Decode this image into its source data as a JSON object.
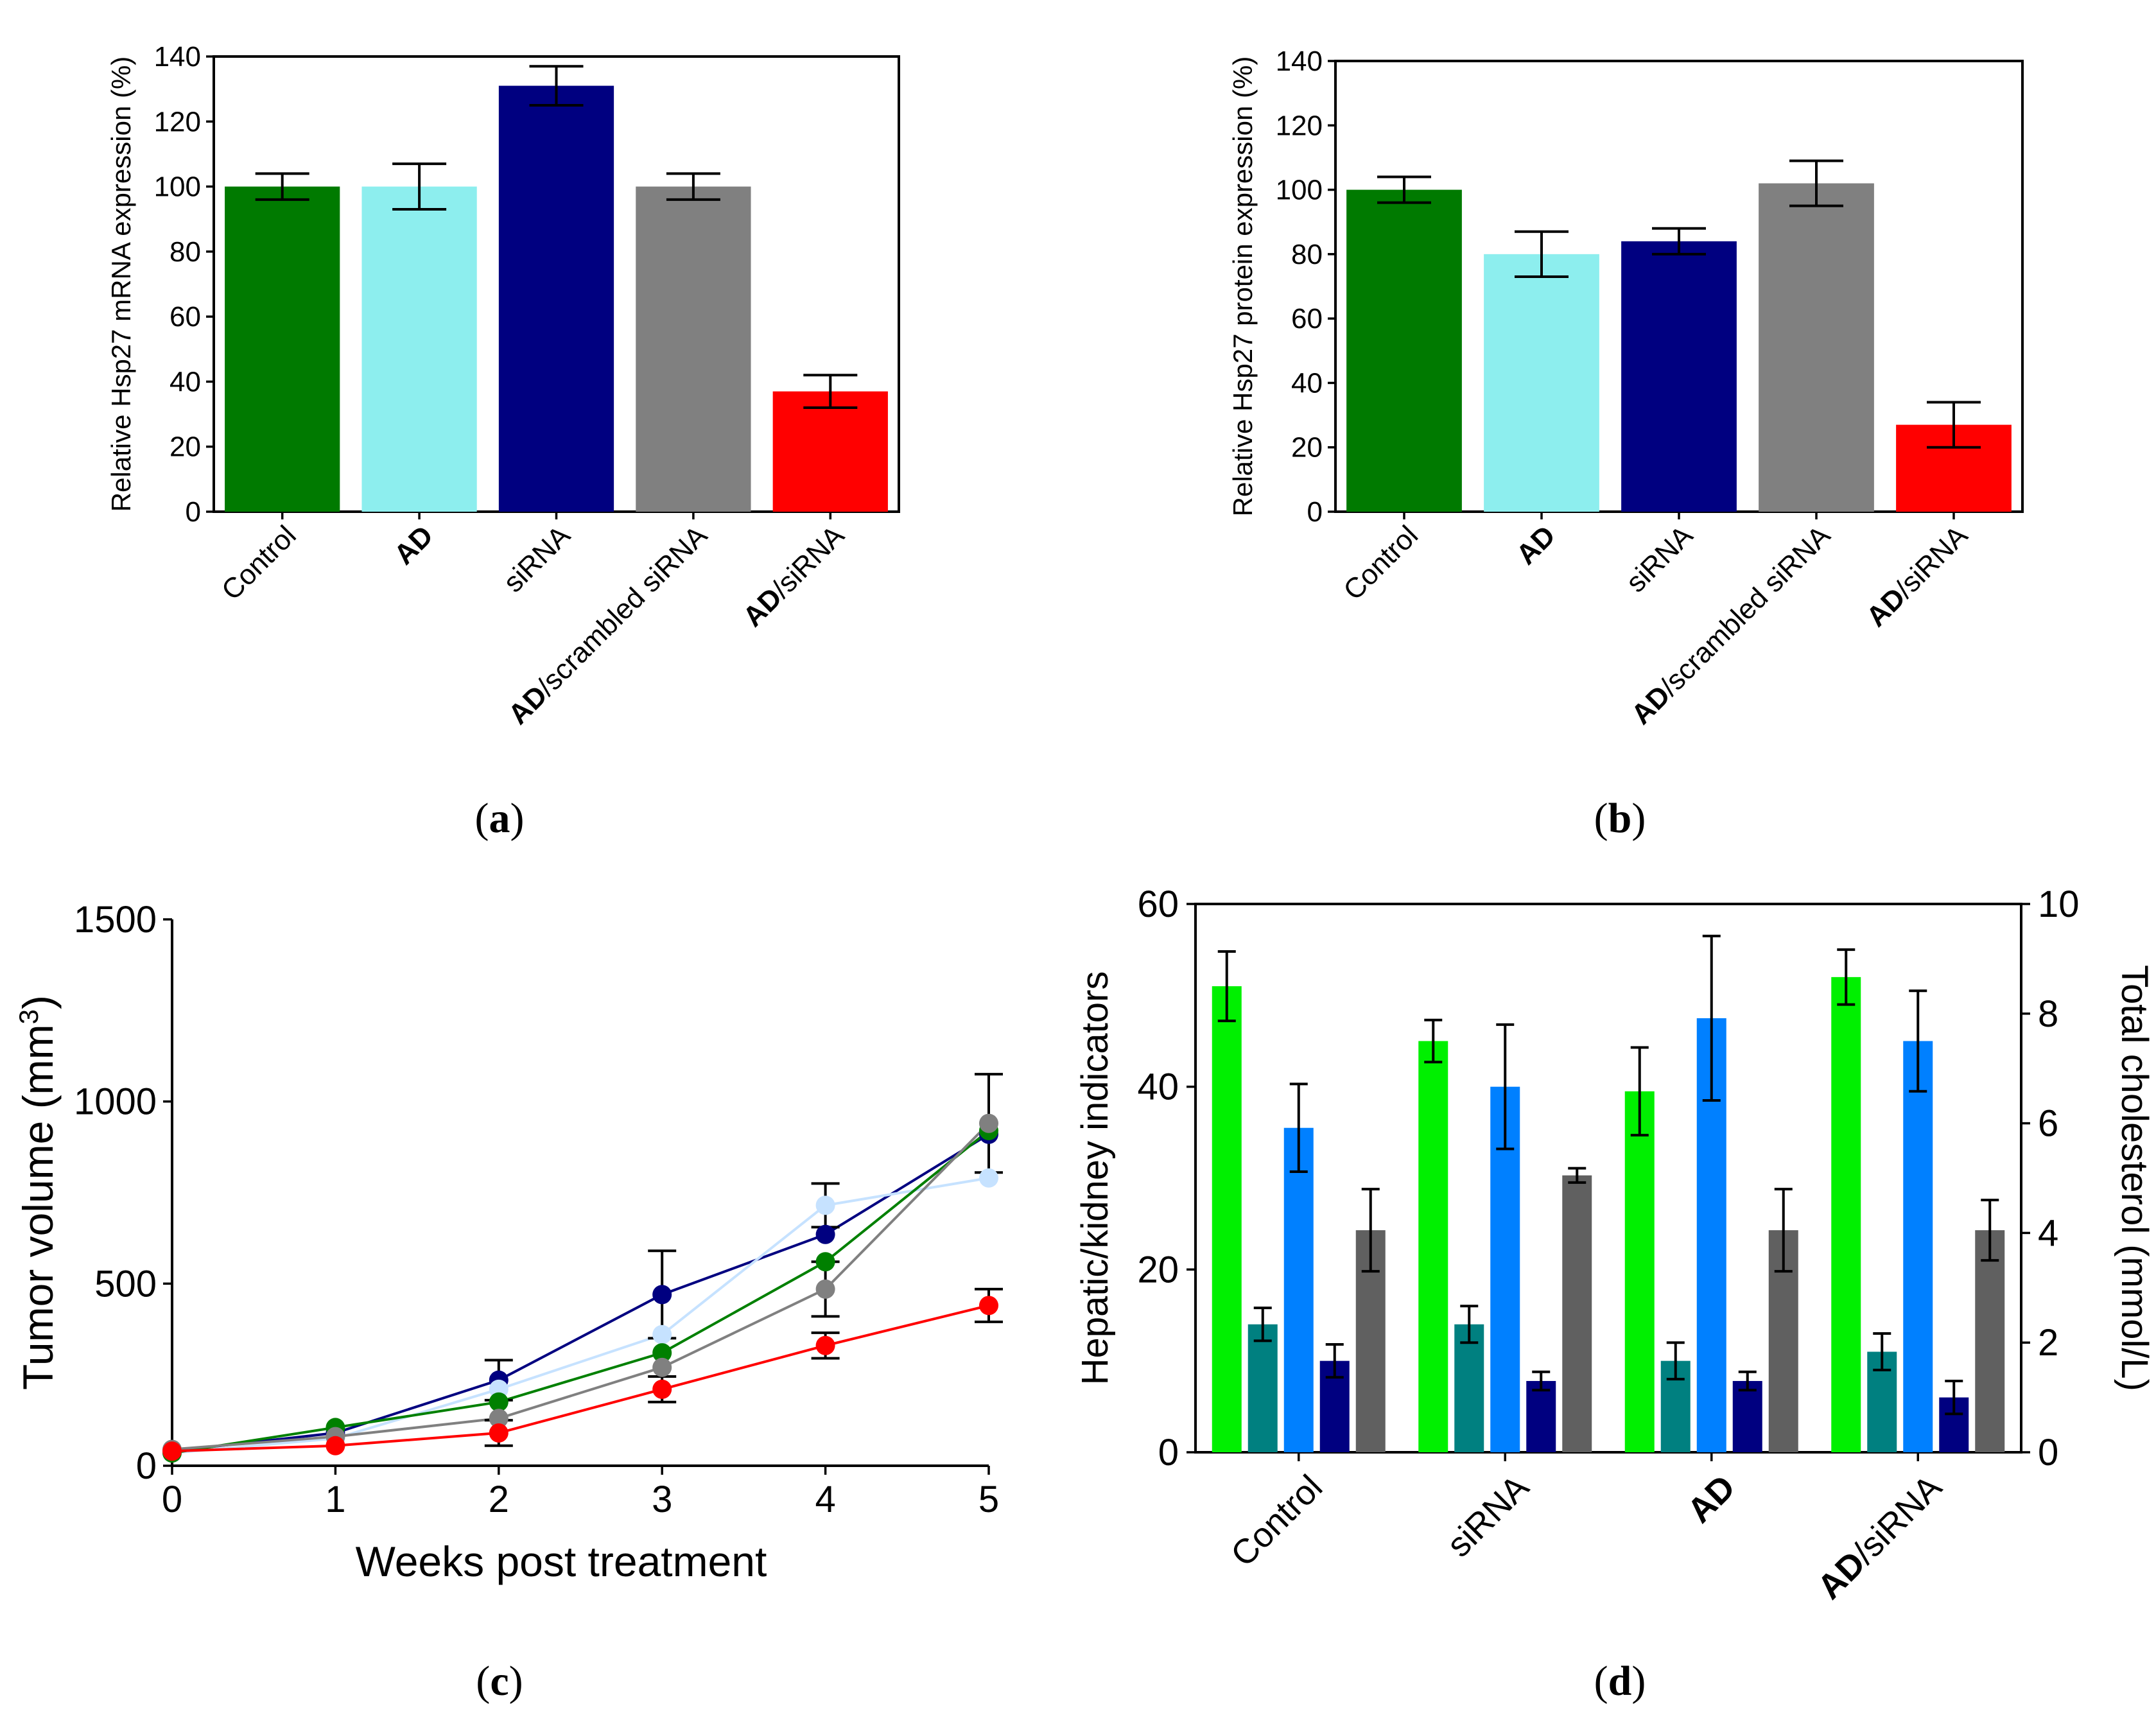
{
  "chart_data": [
    {
      "id": "a",
      "type": "bar",
      "panel_label": "a",
      "ylabel": "Relative Hsp27 mRNA expression (%)",
      "ylim": [
        0,
        140
      ],
      "yticks": [
        0,
        20,
        40,
        60,
        80,
        100,
        120,
        140
      ],
      "categories": [
        {
          "bold": "",
          "rest": "Control"
        },
        {
          "bold": "AD",
          "rest": ""
        },
        {
          "bold": "",
          "rest": "siRNA"
        },
        {
          "bold": "AD",
          "rest": "/scrambled siRNA"
        },
        {
          "bold": "AD",
          "rest": "/siRNA"
        }
      ],
      "values": [
        100,
        100,
        131,
        100,
        37
      ],
      "errors": [
        4,
        7,
        6,
        4,
        5
      ],
      "colors": [
        "#007a00",
        "#8deeee",
        "#000080",
        "#808080",
        "#ff0000"
      ]
    },
    {
      "id": "b",
      "type": "bar",
      "panel_label": "b",
      "ylabel": "Relative Hsp27 protein expression (%)",
      "ylim": [
        0,
        140
      ],
      "yticks": [
        0,
        20,
        40,
        60,
        80,
        100,
        120,
        140
      ],
      "categories": [
        {
          "bold": "",
          "rest": "Control"
        },
        {
          "bold": "AD",
          "rest": ""
        },
        {
          "bold": "",
          "rest": "siRNA"
        },
        {
          "bold": "AD",
          "rest": "/scrambled siRNA"
        },
        {
          "bold": "AD",
          "rest": "/siRNA"
        }
      ],
      "values": [
        100,
        80,
        84,
        102,
        27
      ],
      "errors": [
        4,
        7,
        4,
        7,
        7
      ],
      "colors": [
        "#007a00",
        "#8deeee",
        "#000080",
        "#808080",
        "#ff0000"
      ]
    },
    {
      "id": "c",
      "type": "line",
      "panel_label": "c",
      "xlabel": "Weeks post treatment",
      "ylabel_main": "Tumor volume (mm",
      "ylabel_sup": "3",
      "ylabel_end": ")",
      "xlim": [
        0,
        5
      ],
      "ylim": [
        0,
        1500
      ],
      "xticks": [
        0,
        1,
        2,
        3,
        4,
        5
      ],
      "yticks": [
        0,
        500,
        1000,
        1500
      ],
      "x": [
        0,
        1,
        2,
        3,
        4,
        5
      ],
      "series": [
        {
          "name": "navy",
          "color": "#000080",
          "values": [
            40,
            90,
            235,
            470,
            635,
            910
          ],
          "errors": [
            0,
            0,
            55,
            120,
            0,
            0
          ]
        },
        {
          "name": "lightblue",
          "color": "#c6e2ff",
          "values": [
            35,
            75,
            210,
            360,
            715,
            790
          ],
          "errors": [
            0,
            0,
            0,
            0,
            60,
            0
          ]
        },
        {
          "name": "green",
          "color": "#008000",
          "values": [
            35,
            105,
            175,
            310,
            560,
            920
          ],
          "errors": [
            0,
            0,
            0,
            0,
            0,
            0
          ]
        },
        {
          "name": "grey",
          "color": "#808080",
          "values": [
            45,
            80,
            130,
            270,
            485,
            940
          ],
          "errors": [
            0,
            0,
            0,
            0,
            75,
            135
          ]
        },
        {
          "name": "red",
          "color": "#ff0000",
          "values": [
            40,
            55,
            90,
            210,
            330,
            440
          ],
          "errors": [
            0,
            0,
            35,
            35,
            35,
            45
          ]
        }
      ]
    },
    {
      "id": "d",
      "type": "bar",
      "panel_label": "d",
      "ylabel": "Hepatic/kidney indicators",
      "ylabel_right": "Total cholesterol (mmol/L)",
      "ylim": [
        0,
        60
      ],
      "yticks": [
        0,
        20,
        40,
        60
      ],
      "ylim_right": [
        0,
        10
      ],
      "yticks_right": [
        0,
        2,
        4,
        6,
        8,
        10
      ],
      "categories": [
        {
          "bold": "",
          "rest": "Control"
        },
        {
          "bold": "",
          "rest": "siRNA"
        },
        {
          "bold": "AD",
          "rest": ""
        },
        {
          "bold": "AD",
          "rest": "/siRNA"
        }
      ],
      "series": [
        {
          "name": "bright-green",
          "color": "#00f000",
          "axis": "left",
          "values": [
            51,
            45,
            39.5,
            52
          ],
          "errors": [
            3.8,
            2.3,
            4.8,
            3
          ]
        },
        {
          "name": "teal",
          "color": "#008080",
          "axis": "left",
          "values": [
            14,
            14,
            10,
            11
          ],
          "errors": [
            1.8,
            2,
            2,
            2
          ]
        },
        {
          "name": "azure",
          "color": "#0080ff",
          "axis": "left",
          "values": [
            35.5,
            40,
            47.5,
            45
          ],
          "errors": [
            4.8,
            6.8,
            9,
            5.5
          ]
        },
        {
          "name": "navy",
          "color": "#000080",
          "axis": "left",
          "values": [
            10,
            7.8,
            7.8,
            6
          ],
          "errors": [
            1.8,
            1,
            1,
            1.8
          ]
        },
        {
          "name": "dark-grey",
          "color": "#606060",
          "axis": "right",
          "values": [
            4.05,
            5.05,
            4.05,
            4.05
          ],
          "errors": [
            0.75,
            0.13,
            0.75,
            0.55
          ]
        }
      ]
    }
  ]
}
